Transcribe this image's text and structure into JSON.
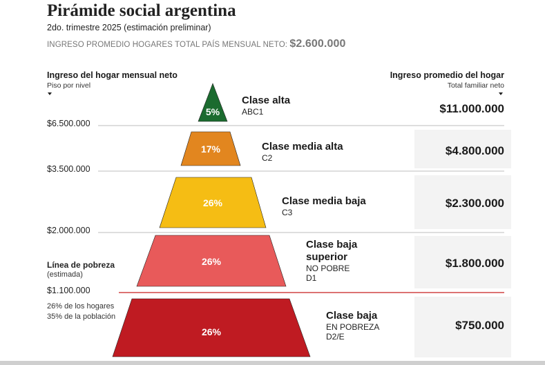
{
  "header": {
    "title": "Pirámide social argentina",
    "subtitle": "2do. trimestre 2025 (estimación preliminar)",
    "avg_label": "INGRESO PROMEDIO HOGARES TOTAL PAÍS MENSUAL NETO:",
    "avg_value": "$2.600.000"
  },
  "left_column": {
    "title": "Ingreso del hogar mensual neto",
    "subtitle": "Piso por nivel"
  },
  "right_column": {
    "title": "Ingreso promedio del hogar",
    "subtitle": "Total familiar neto"
  },
  "thresholds": [
    "$6.500.000",
    "$3.500.000",
    "$2.000.000",
    "$1.100.000"
  ],
  "poverty_line": {
    "label": "Línea de pobreza",
    "sublabel": "(estimada)",
    "note_households": "26% de los hogares",
    "note_population": "35% de la población"
  },
  "levels": [
    {
      "name": "Clase alta",
      "name2": "",
      "code": "ABC1",
      "code2": "",
      "share_pct": 5,
      "pct_label": "5%",
      "avg_income": "$11.000.000",
      "color": "#1b6b2f"
    },
    {
      "name": "Clase media alta",
      "name2": "",
      "code": "C2",
      "code2": "",
      "share_pct": 17,
      "pct_label": "17%",
      "avg_income": "$4.800.000",
      "color": "#e2861f"
    },
    {
      "name": "Clase media baja",
      "name2": "",
      "code": "C3",
      "code2": "",
      "share_pct": 26,
      "pct_label": "26%",
      "avg_income": "$2.300.000",
      "color": "#f5bd14"
    },
    {
      "name": "Clase baja",
      "name2": "superior",
      "code": "NO POBRE",
      "code2": "D1",
      "share_pct": 26,
      "pct_label": "26%",
      "avg_income": "$1.800.000",
      "color": "#e85a5a"
    },
    {
      "name": "Clase baja",
      "name2": "",
      "code": "EN POBREZA",
      "code2": "D2/E",
      "share_pct": 26,
      "pct_label": "26%",
      "avg_income": "$750.000",
      "color": "#bf1b22"
    }
  ],
  "colors": {
    "divider": "#bdbdbd",
    "poverty_line": "#c81e1e",
    "panel": "#f1f1f1"
  }
}
